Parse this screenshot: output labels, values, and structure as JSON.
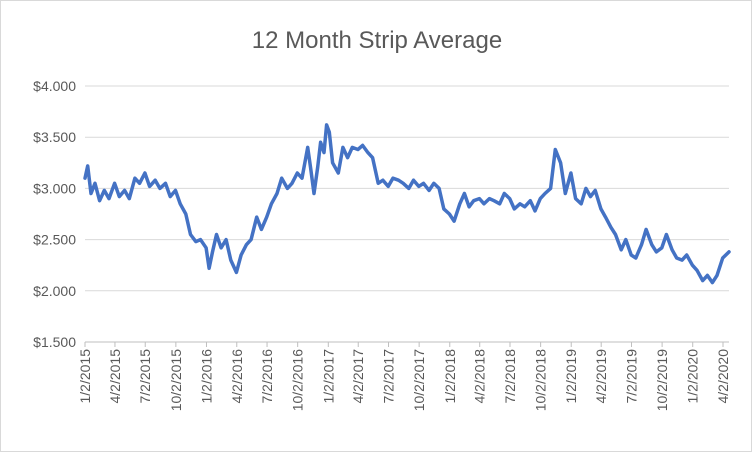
{
  "colors": {
    "series": "#4472C4",
    "grid": "#d9d9d9",
    "text": "#595959"
  },
  "chart_data": {
    "type": "line",
    "title": "12 Month Strip Average",
    "xlabel": "",
    "ylabel": "",
    "ylim": [
      1.5,
      4.0
    ],
    "y_ticks": [
      1.5,
      2.0,
      2.5,
      3.0,
      3.5,
      4.0
    ],
    "y_tick_labels": [
      "$1.500",
      "$2.000",
      "$2.500",
      "$3.000",
      "$3.500",
      "$4.000"
    ],
    "x_range": [
      "2015-01-02",
      "2020-04-20"
    ],
    "x_tick_labels": [
      "1/2/2015",
      "4/2/2015",
      "7/2/2015",
      "10/2/2015",
      "1/2/2016",
      "4/2/2016",
      "7/2/2016",
      "10/2/2016",
      "1/2/2017",
      "4/2/2017",
      "7/2/2017",
      "10/2/2017",
      "1/2/2018",
      "4/2/2018",
      "7/2/2018",
      "10/2/2018",
      "1/2/2019",
      "4/2/2019",
      "7/2/2019",
      "10/2/2019",
      "1/2/2020",
      "4/2/2020"
    ],
    "grid": true,
    "legend": "none",
    "series": [
      {
        "x": [
          "2015-01-02",
          "2015-01-10",
          "2015-01-20",
          "2015-02-01",
          "2015-02-15",
          "2015-03-01",
          "2015-03-15",
          "2015-04-01",
          "2015-04-15",
          "2015-05-01",
          "2015-05-15",
          "2015-06-01",
          "2015-06-15",
          "2015-07-01",
          "2015-07-15",
          "2015-08-01",
          "2015-08-15",
          "2015-09-01",
          "2015-09-15",
          "2015-10-01",
          "2015-10-15",
          "2015-11-01",
          "2015-11-15",
          "2015-12-01",
          "2015-12-15",
          "2016-01-01",
          "2016-01-10",
          "2016-01-20",
          "2016-02-01",
          "2016-02-15",
          "2016-03-01",
          "2016-03-15",
          "2016-04-01",
          "2016-04-15",
          "2016-05-01",
          "2016-05-15",
          "2016-06-01",
          "2016-06-15",
          "2016-07-01",
          "2016-07-15",
          "2016-08-01",
          "2016-08-15",
          "2016-09-01",
          "2016-09-15",
          "2016-10-01",
          "2016-10-15",
          "2016-11-01",
          "2016-11-10",
          "2016-11-20",
          "2016-12-01",
          "2016-12-10",
          "2016-12-20",
          "2016-12-28",
          "2017-01-05",
          "2017-01-15",
          "2017-02-01",
          "2017-02-15",
          "2017-03-01",
          "2017-03-15",
          "2017-04-01",
          "2017-04-15",
          "2017-05-01",
          "2017-05-15",
          "2017-06-01",
          "2017-06-15",
          "2017-07-01",
          "2017-07-15",
          "2017-08-01",
          "2017-08-15",
          "2017-09-01",
          "2017-09-15",
          "2017-10-01",
          "2017-10-15",
          "2017-11-01",
          "2017-11-15",
          "2017-12-01",
          "2017-12-15",
          "2018-01-01",
          "2018-01-15",
          "2018-02-01",
          "2018-02-15",
          "2018-03-01",
          "2018-03-15",
          "2018-04-01",
          "2018-04-15",
          "2018-05-01",
          "2018-05-15",
          "2018-06-01",
          "2018-06-15",
          "2018-07-01",
          "2018-07-15",
          "2018-08-01",
          "2018-08-15",
          "2018-09-01",
          "2018-09-15",
          "2018-10-01",
          "2018-10-15",
          "2018-11-01",
          "2018-11-15",
          "2018-12-01",
          "2018-12-15",
          "2019-01-01",
          "2019-01-15",
          "2019-02-01",
          "2019-02-15",
          "2019-03-01",
          "2019-03-15",
          "2019-04-01",
          "2019-04-15",
          "2019-05-01",
          "2019-05-15",
          "2019-06-01",
          "2019-06-15",
          "2019-07-01",
          "2019-07-15",
          "2019-08-01",
          "2019-08-15",
          "2019-09-01",
          "2019-09-15",
          "2019-10-01",
          "2019-10-15",
          "2019-11-01",
          "2019-11-15",
          "2019-12-01",
          "2019-12-15",
          "2020-01-01",
          "2020-01-15",
          "2020-02-01",
          "2020-02-15",
          "2020-03-01",
          "2020-03-15",
          "2020-04-01",
          "2020-04-20"
        ],
        "values": [
          3.1,
          3.22,
          2.95,
          3.05,
          2.88,
          2.98,
          2.9,
          3.05,
          2.92,
          2.98,
          2.9,
          3.1,
          3.05,
          3.15,
          3.02,
          3.08,
          3.0,
          3.05,
          2.92,
          2.98,
          2.85,
          2.75,
          2.55,
          2.48,
          2.5,
          2.42,
          2.22,
          2.38,
          2.55,
          2.42,
          2.5,
          2.3,
          2.18,
          2.35,
          2.45,
          2.5,
          2.72,
          2.6,
          2.72,
          2.85,
          2.95,
          3.1,
          3.0,
          3.05,
          3.15,
          3.1,
          3.4,
          3.2,
          2.95,
          3.2,
          3.45,
          3.35,
          3.62,
          3.55,
          3.25,
          3.15,
          3.4,
          3.3,
          3.4,
          3.38,
          3.42,
          3.35,
          3.3,
          3.05,
          3.08,
          3.02,
          3.1,
          3.08,
          3.05,
          3.0,
          3.08,
          3.02,
          3.05,
          2.98,
          3.05,
          3.0,
          2.8,
          2.75,
          2.68,
          2.85,
          2.95,
          2.82,
          2.88,
          2.9,
          2.85,
          2.9,
          2.88,
          2.85,
          2.95,
          2.9,
          2.8,
          2.85,
          2.82,
          2.88,
          2.78,
          2.9,
          2.95,
          3.0,
          3.38,
          3.25,
          2.95,
          3.15,
          2.9,
          2.85,
          3.0,
          2.92,
          2.98,
          2.8,
          2.72,
          2.62,
          2.55,
          2.4,
          2.5,
          2.35,
          2.32,
          2.45,
          2.6,
          2.45,
          2.38,
          2.42,
          2.55,
          2.4,
          2.32,
          2.3,
          2.35,
          2.25,
          2.2,
          2.1,
          2.15,
          2.08,
          2.15,
          2.32,
          2.38
        ]
      }
    ]
  }
}
